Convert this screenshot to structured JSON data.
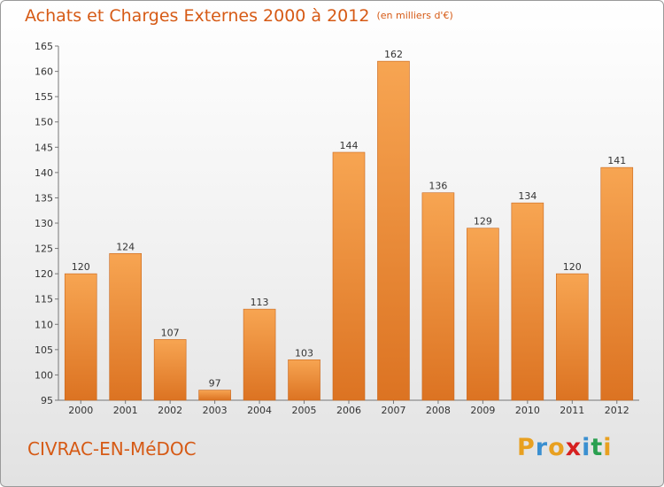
{
  "chart_data": {
    "type": "bar",
    "title": "Achats et Charges Externes 2000 à 2012",
    "subtitle": "(en milliers d'€)",
    "categories": [
      "2000",
      "2001",
      "2002",
      "2003",
      "2004",
      "2005",
      "2006",
      "2007",
      "2008",
      "2009",
      "2010",
      "2011",
      "2012"
    ],
    "values": [
      120,
      124,
      107,
      97,
      113,
      103,
      144,
      162,
      136,
      129,
      134,
      120,
      141
    ],
    "ylim": [
      95,
      165
    ],
    "yticks": [
      95,
      100,
      105,
      110,
      115,
      120,
      125,
      130,
      135,
      140,
      145,
      150,
      155,
      160,
      165
    ],
    "grid": false,
    "bar_color": "#f09a40"
  },
  "commune": "CIVRAC-EN-MéDOC",
  "logo": {
    "letters": [
      "P",
      "r",
      "o",
      "x",
      "i",
      "t",
      "i"
    ],
    "colors": [
      "#e8a020",
      "#3a8fd0",
      "#e8a020",
      "#d62020",
      "#3a8fd0",
      "#2aa050",
      "#e8a020"
    ]
  }
}
